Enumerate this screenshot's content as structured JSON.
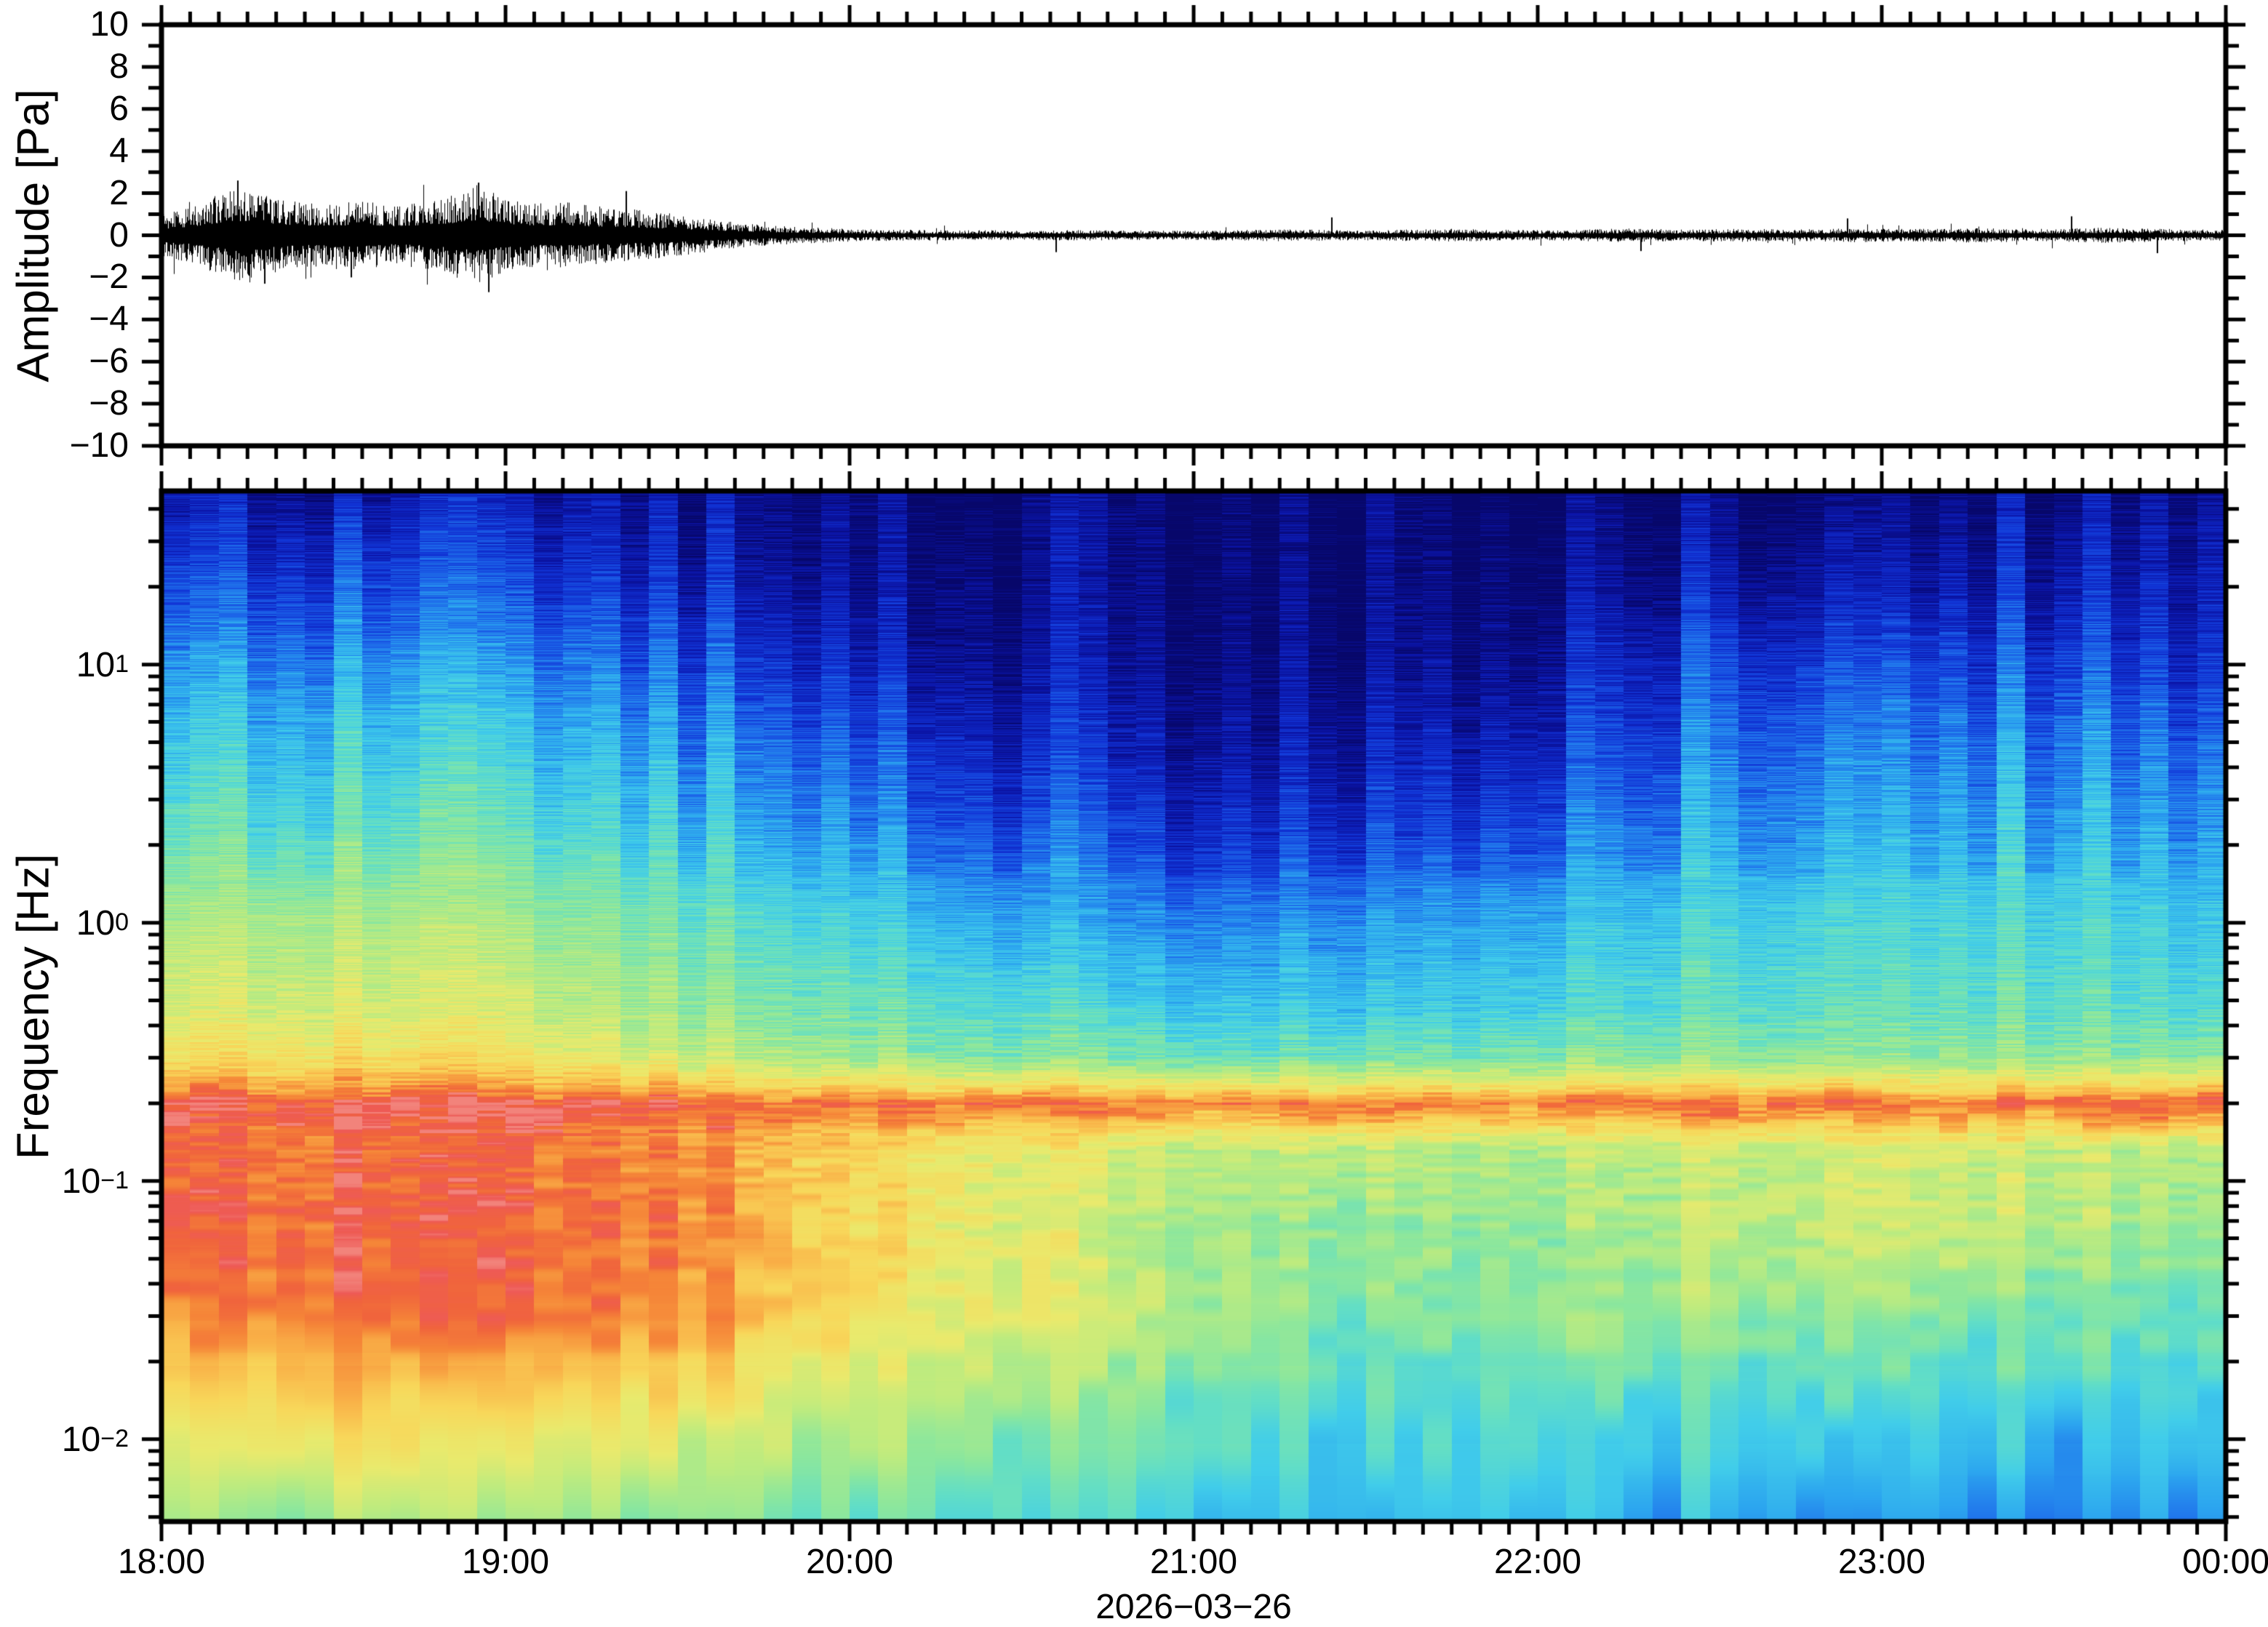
{
  "figure": {
    "date_label": "2026−03−26",
    "background": "#ffffff",
    "frame_color": "#000000",
    "trace_color": "#000000"
  },
  "top_panel": {
    "ylabel": "Amplitude [Pa]",
    "ylim": [
      -10,
      10
    ],
    "ytick_major_values": [
      10,
      8,
      6,
      4,
      2,
      0,
      -2,
      -4,
      -6,
      -8,
      -10
    ],
    "ytick_minor_step_pa": 1
  },
  "bottom_panel": {
    "ylabel": "Frequency [Hz]",
    "ytick_exponents": [
      1,
      0,
      -1,
      -2
    ],
    "flim": [
      0.0048,
      47
    ]
  },
  "time_axis": {
    "hour_labels": [
      "18:00",
      "19:00",
      "20:00",
      "21:00",
      "22:00",
      "23:00",
      "00:00"
    ],
    "span_hours": 6,
    "minor_tick_minutes": 5
  },
  "chart_data": [
    {
      "type": "line",
      "name": "infrasound-waveform",
      "ylabel": "Amplitude [Pa]",
      "ylim": [
        -10,
        10
      ],
      "x_unit": "hours after 18:00",
      "envelope_step_hours": 0.08333,
      "envelope_pa": [
        1.0,
        1.35,
        1.95,
        2.3,
        1.75,
        1.55,
        1.45,
        1.7,
        1.4,
        1.55,
        1.85,
        2.4,
        1.8,
        1.5,
        1.6,
        1.4,
        1.3,
        1.15,
        1.0,
        0.8,
        0.62,
        0.5,
        0.42,
        0.36,
        0.3,
        0.28,
        0.26,
        0.25,
        0.24,
        0.24,
        0.23,
        0.24,
        0.25,
        0.24,
        0.23,
        0.22,
        0.22,
        0.24,
        0.26,
        0.29,
        0.27,
        0.25,
        0.24,
        0.26,
        0.29,
        0.31,
        0.28,
        0.26,
        0.25,
        0.26,
        0.29,
        0.33,
        0.3,
        0.28,
        0.29,
        0.31,
        0.3,
        0.28,
        0.3,
        0.33,
        0.31,
        0.3,
        0.32,
        0.35,
        0.33,
        0.3,
        0.31,
        0.34,
        0.37,
        0.33,
        0.3,
        0.28,
        0.27
      ],
      "spikes": [
        {
          "t": 0.22,
          "a": 2.6
        },
        {
          "t": 0.3,
          "a": -2.3
        },
        {
          "t": 0.55,
          "a": -2.0
        },
        {
          "t": 0.92,
          "a": 2.5
        },
        {
          "t": 0.95,
          "a": -2.7
        },
        {
          "t": 1.35,
          "a": 2.1
        },
        {
          "t": 2.6,
          "a": -0.8
        },
        {
          "t": 3.4,
          "a": 0.85
        },
        {
          "t": 4.3,
          "a": -0.75
        },
        {
          "t": 4.9,
          "a": 0.8
        },
        {
          "t": 5.55,
          "a": 0.9
        },
        {
          "t": 5.8,
          "a": -0.85
        }
      ],
      "noise_seed": 12345
    },
    {
      "type": "heatmap",
      "name": "infrasound-spectrogram",
      "ylabel": "Frequency [Hz]",
      "x_hours": [
        0,
        0.5,
        1,
        1.5,
        2,
        2.5,
        3,
        3.5,
        4,
        4.5,
        5,
        5.5,
        6
      ],
      "freqs_hz": [
        50,
        22,
        10,
        4.7,
        2.2,
        1.0,
        0.47,
        0.3,
        0.2,
        0.13,
        0.07,
        0.03,
        0.012,
        0.0046
      ],
      "values_normalized": [
        [
          0.07,
          0.07,
          0.07,
          0.06,
          0.04,
          0.03,
          0.03,
          0.03,
          0.03,
          0.04,
          0.05,
          0.05,
          0.04
        ],
        [
          0.17,
          0.18,
          0.16,
          0.12,
          0.07,
          0.05,
          0.04,
          0.04,
          0.06,
          0.1,
          0.12,
          0.11,
          0.08
        ],
        [
          0.28,
          0.29,
          0.27,
          0.22,
          0.13,
          0.08,
          0.06,
          0.06,
          0.1,
          0.2,
          0.22,
          0.2,
          0.13
        ],
        [
          0.37,
          0.38,
          0.36,
          0.31,
          0.22,
          0.14,
          0.1,
          0.11,
          0.16,
          0.27,
          0.3,
          0.28,
          0.22
        ],
        [
          0.45,
          0.46,
          0.44,
          0.38,
          0.3,
          0.22,
          0.17,
          0.18,
          0.25,
          0.33,
          0.36,
          0.34,
          0.28
        ],
        [
          0.57,
          0.58,
          0.56,
          0.48,
          0.4,
          0.33,
          0.28,
          0.3,
          0.35,
          0.41,
          0.43,
          0.42,
          0.36
        ],
        [
          0.64,
          0.65,
          0.63,
          0.55,
          0.48,
          0.43,
          0.38,
          0.38,
          0.42,
          0.46,
          0.47,
          0.46,
          0.41
        ],
        [
          0.72,
          0.73,
          0.71,
          0.63,
          0.56,
          0.52,
          0.48,
          0.49,
          0.52,
          0.54,
          0.55,
          0.54,
          0.52
        ],
        [
          0.9,
          0.92,
          0.91,
          0.88,
          0.86,
          0.85,
          0.84,
          0.85,
          0.85,
          0.87,
          0.86,
          0.87,
          0.88
        ],
        [
          0.92,
          0.93,
          0.92,
          0.88,
          0.76,
          0.68,
          0.62,
          0.6,
          0.6,
          0.63,
          0.66,
          0.62,
          0.58
        ],
        [
          0.94,
          0.95,
          0.94,
          0.9,
          0.76,
          0.66,
          0.58,
          0.55,
          0.57,
          0.6,
          0.66,
          0.6,
          0.53
        ],
        [
          0.88,
          0.91,
          0.92,
          0.88,
          0.74,
          0.68,
          0.58,
          0.5,
          0.54,
          0.56,
          0.55,
          0.5,
          0.46
        ],
        [
          0.7,
          0.74,
          0.74,
          0.7,
          0.6,
          0.54,
          0.48,
          0.42,
          0.45,
          0.43,
          0.42,
          0.36,
          0.38
        ],
        [
          0.55,
          0.53,
          0.55,
          0.52,
          0.48,
          0.44,
          0.4,
          0.36,
          0.35,
          0.33,
          0.31,
          0.24,
          0.28
        ]
      ],
      "microbarom_band": {
        "center_hz": 0.19,
        "boost": 0.07,
        "log_width": 0.06
      },
      "time_bin_minutes": 5,
      "colormap": {
        "stops": [
          [
            0.0,
            "#07076a"
          ],
          [
            0.08,
            "#0b14a6"
          ],
          [
            0.16,
            "#1134d6"
          ],
          [
            0.24,
            "#1e6ceb"
          ],
          [
            0.31,
            "#2ca6ef"
          ],
          [
            0.38,
            "#41cdea"
          ],
          [
            0.45,
            "#62dec6"
          ],
          [
            0.52,
            "#8ce79d"
          ],
          [
            0.6,
            "#bdeb7f"
          ],
          [
            0.68,
            "#e9ea6d"
          ],
          [
            0.76,
            "#f8d75a"
          ],
          [
            0.83,
            "#f9b248"
          ],
          [
            0.89,
            "#f58538"
          ],
          [
            0.94,
            "#f0643c"
          ],
          [
            0.98,
            "#ee5a56"
          ],
          [
            1.0,
            "#f2837b"
          ]
        ]
      },
      "noise_seed": 20260326
    }
  ]
}
